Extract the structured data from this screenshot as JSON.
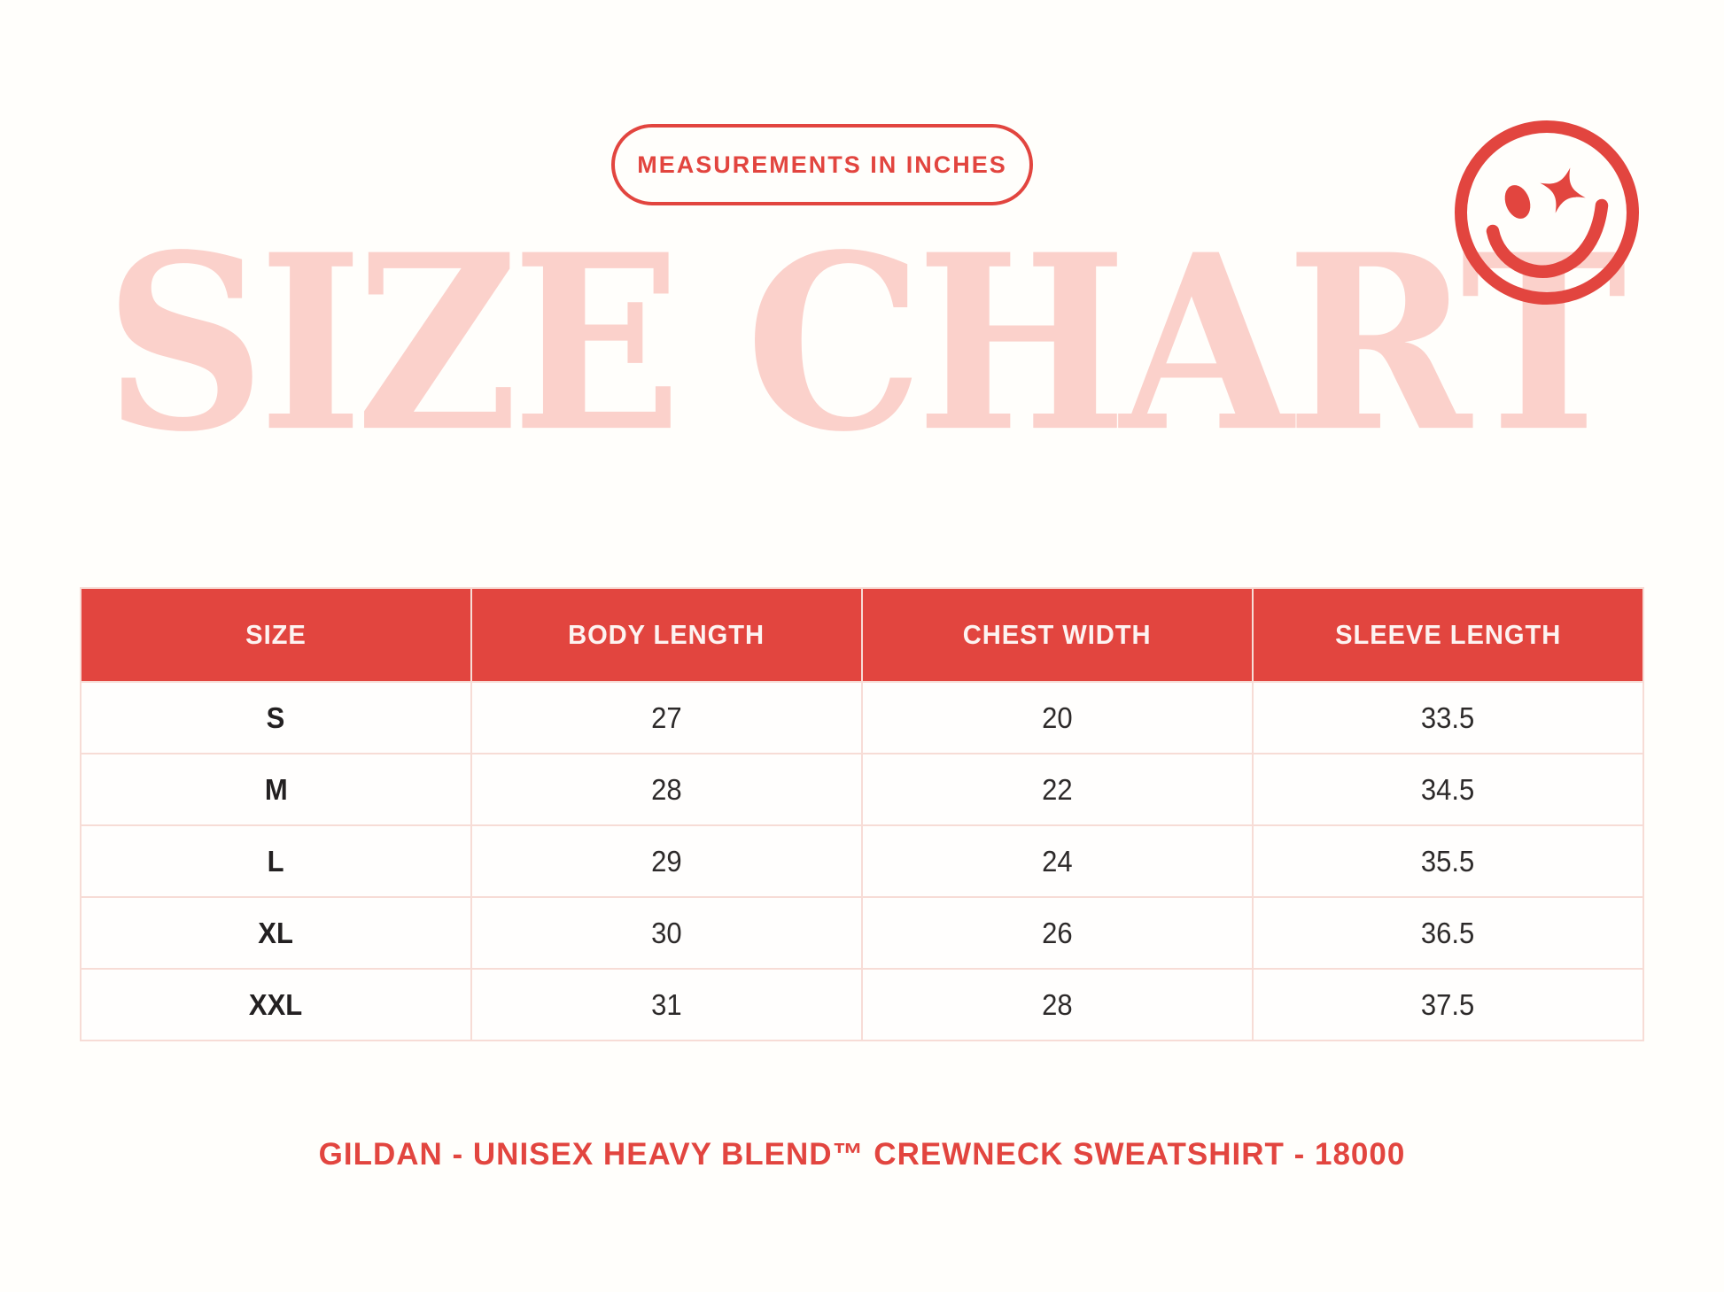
{
  "colors": {
    "accent_red": "#E2453F",
    "title_pink": "#FBD1CB",
    "border_pink": "#F7DCD6",
    "background": "#FFFEFB",
    "text_dark": "#2D2A2A"
  },
  "badge": {
    "label": "MEASUREMENTS IN INCHES"
  },
  "icons": {
    "smiley": "winking-smiley-face-with-sparkle-eye"
  },
  "chart_data": {
    "type": "table",
    "title": "SIZE CHART",
    "units": "inches",
    "columns": [
      "SIZE",
      "BODY LENGTH",
      "CHEST WIDTH",
      "SLEEVE LENGTH"
    ],
    "rows": [
      [
        "S",
        "27",
        "20",
        "33.5"
      ],
      [
        "M",
        "28",
        "22",
        "34.5"
      ],
      [
        "L",
        "29",
        "24",
        "35.5"
      ],
      [
        "XL",
        "30",
        "26",
        "36.5"
      ],
      [
        "XXL",
        "31",
        "28",
        "37.5"
      ]
    ]
  },
  "footer": {
    "text": "GILDAN - UNISEX HEAVY BLEND™ CREWNECK SWEATSHIRT - 18000"
  }
}
